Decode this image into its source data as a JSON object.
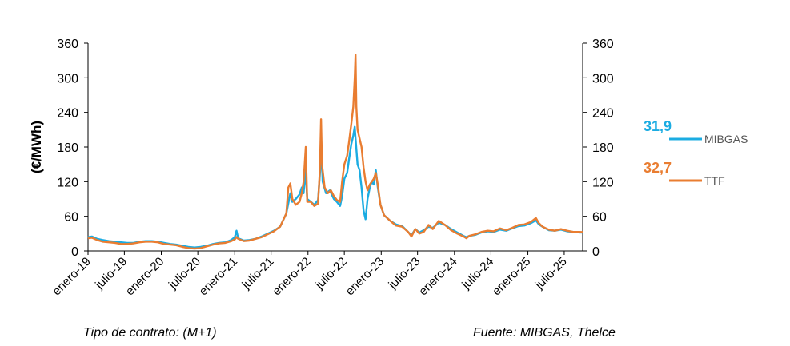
{
  "chart_data": {
    "type": "line",
    "ylabel": "(€/MWh)",
    "ylim": [
      0,
      360
    ],
    "yticks": [
      "0",
      "60",
      "120",
      "180",
      "240",
      "300",
      "360"
    ],
    "y2ticks": [
      "0",
      "60",
      "120",
      "180",
      "240",
      "300",
      "360"
    ],
    "xlim": [
      "2019-01",
      "2025-10"
    ],
    "xticks": [
      {
        "label": "enero-19",
        "date": "2019-01"
      },
      {
        "label": "julio-19",
        "date": "2019-07"
      },
      {
        "label": "enero-20",
        "date": "2020-01"
      },
      {
        "label": "julio-20",
        "date": "2020-07"
      },
      {
        "label": "enero-21",
        "date": "2021-01"
      },
      {
        "label": "julio-21",
        "date": "2021-07"
      },
      {
        "label": "enero-22",
        "date": "2022-01"
      },
      {
        "label": "julio-22",
        "date": "2022-07"
      },
      {
        "label": "enero-23",
        "date": "2023-01"
      },
      {
        "label": "julio-23",
        "date": "2023-07"
      },
      {
        "label": "enero-24",
        "date": "2024-01"
      },
      {
        "label": "julio-24",
        "date": "2024-07"
      },
      {
        "label": "enero-25",
        "date": "2025-01"
      },
      {
        "label": "julio-25",
        "date": "2025-07"
      }
    ],
    "grid": false,
    "legend": "right",
    "series": [
      {
        "name": "MIBGAS",
        "color": "#1BACE2",
        "last_label": "31,9",
        "points": [
          [
            "2019-01-01",
            24
          ],
          [
            "2019-01-20",
            25
          ],
          [
            "2019-02-15",
            21
          ],
          [
            "2019-03-15",
            19
          ],
          [
            "2019-04-15",
            17
          ],
          [
            "2019-05-15",
            16
          ],
          [
            "2019-06-15",
            15
          ],
          [
            "2019-07-15",
            14
          ],
          [
            "2019-08-15",
            14
          ],
          [
            "2019-09-15",
            16
          ],
          [
            "2019-10-15",
            17
          ],
          [
            "2019-11-15",
            17
          ],
          [
            "2019-12-15",
            16
          ],
          [
            "2020-01-15",
            14
          ],
          [
            "2020-02-15",
            12
          ],
          [
            "2020-03-15",
            11
          ],
          [
            "2020-04-15",
            9
          ],
          [
            "2020-05-15",
            7
          ],
          [
            "2020-06-15",
            6
          ],
          [
            "2020-07-15",
            7
          ],
          [
            "2020-08-15",
            9
          ],
          [
            "2020-09-15",
            12
          ],
          [
            "2020-10-15",
            14
          ],
          [
            "2020-11-15",
            15
          ],
          [
            "2020-12-15",
            19
          ],
          [
            "2021-01-01",
            24
          ],
          [
            "2021-01-10",
            35
          ],
          [
            "2021-01-18",
            22
          ],
          [
            "2021-02-15",
            18
          ],
          [
            "2021-03-15",
            19
          ],
          [
            "2021-04-15",
            21
          ],
          [
            "2021-05-15",
            25
          ],
          [
            "2021-06-15",
            30
          ],
          [
            "2021-07-15",
            35
          ],
          [
            "2021-08-15",
            42
          ],
          [
            "2021-09-15",
            65
          ],
          [
            "2021-10-05",
            100
          ],
          [
            "2021-10-15",
            85
          ],
          [
            "2021-11-01",
            90
          ],
          [
            "2021-11-20",
            98
          ],
          [
            "2021-12-01",
            110
          ],
          [
            "2021-12-10",
            100
          ],
          [
            "2021-12-20",
            140
          ],
          [
            "2021-12-28",
            90
          ],
          [
            "2022-01-15",
            85
          ],
          [
            "2022-02-01",
            80
          ],
          [
            "2022-02-20",
            88
          ],
          [
            "2022-03-05",
            150
          ],
          [
            "2022-03-08",
            190
          ],
          [
            "2022-03-15",
            120
          ],
          [
            "2022-04-01",
            100
          ],
          [
            "2022-04-20",
            105
          ],
          [
            "2022-05-10",
            90
          ],
          [
            "2022-05-25",
            85
          ],
          [
            "2022-06-10",
            78
          ],
          [
            "2022-06-20",
            95
          ],
          [
            "2022-07-01",
            125
          ],
          [
            "2022-07-15",
            135
          ],
          [
            "2022-07-25",
            160
          ],
          [
            "2022-08-05",
            185
          ],
          [
            "2022-08-15",
            200
          ],
          [
            "2022-08-22",
            215
          ],
          [
            "2022-08-26",
            195
          ],
          [
            "2022-09-05",
            150
          ],
          [
            "2022-09-15",
            140
          ],
          [
            "2022-09-25",
            110
          ],
          [
            "2022-10-05",
            70
          ],
          [
            "2022-10-15",
            55
          ],
          [
            "2022-10-25",
            90
          ],
          [
            "2022-11-05",
            110
          ],
          [
            "2022-11-15",
            120
          ],
          [
            "2022-11-25",
            115
          ],
          [
            "2022-12-05",
            140
          ],
          [
            "2022-12-15",
            110
          ],
          [
            "2022-12-28",
            80
          ],
          [
            "2023-01-15",
            62
          ],
          [
            "2023-02-15",
            52
          ],
          [
            "2023-03-15",
            46
          ],
          [
            "2023-04-15",
            43
          ],
          [
            "2023-05-15",
            33
          ],
          [
            "2023-06-01",
            27
          ],
          [
            "2023-06-20",
            38
          ],
          [
            "2023-07-10",
            32
          ],
          [
            "2023-08-01",
            36
          ],
          [
            "2023-08-25",
            42
          ],
          [
            "2023-09-15",
            40
          ],
          [
            "2023-10-15",
            49
          ],
          [
            "2023-11-15",
            45
          ],
          [
            "2023-12-15",
            38
          ],
          [
            "2024-01-15",
            32
          ],
          [
            "2024-02-15",
            26
          ],
          [
            "2024-03-01",
            24
          ],
          [
            "2024-03-15",
            26
          ],
          [
            "2024-04-15",
            28
          ],
          [
            "2024-05-15",
            32
          ],
          [
            "2024-06-15",
            34
          ],
          [
            "2024-07-15",
            33
          ],
          [
            "2024-08-15",
            37
          ],
          [
            "2024-09-15",
            35
          ],
          [
            "2024-10-15",
            39
          ],
          [
            "2024-11-15",
            43
          ],
          [
            "2024-12-15",
            44
          ],
          [
            "2025-01-15",
            48
          ],
          [
            "2025-02-10",
            53
          ],
          [
            "2025-02-25",
            46
          ],
          [
            "2025-03-15",
            42
          ],
          [
            "2025-04-15",
            36
          ],
          [
            "2025-05-15",
            35
          ],
          [
            "2025-06-15",
            37
          ],
          [
            "2025-07-15",
            34
          ],
          [
            "2025-08-15",
            33
          ],
          [
            "2025-09-15",
            32
          ],
          [
            "2025-10-01",
            31.9
          ]
        ]
      },
      {
        "name": "TTF",
        "color": "#E97D31",
        "last_label": "32,7",
        "points": [
          [
            "2019-01-01",
            22
          ],
          [
            "2019-01-20",
            23
          ],
          [
            "2019-02-15",
            19
          ],
          [
            "2019-03-15",
            16
          ],
          [
            "2019-04-15",
            15
          ],
          [
            "2019-05-15",
            14
          ],
          [
            "2019-06-15",
            12
          ],
          [
            "2019-07-15",
            12
          ],
          [
            "2019-08-15",
            13
          ],
          [
            "2019-09-15",
            15
          ],
          [
            "2019-10-15",
            16
          ],
          [
            "2019-11-15",
            16
          ],
          [
            "2019-12-15",
            15
          ],
          [
            "2020-01-15",
            12
          ],
          [
            "2020-02-15",
            11
          ],
          [
            "2020-03-15",
            10
          ],
          [
            "2020-04-15",
            7
          ],
          [
            "2020-05-15",
            5
          ],
          [
            "2020-06-15",
            4
          ],
          [
            "2020-07-15",
            5
          ],
          [
            "2020-08-15",
            8
          ],
          [
            "2020-09-15",
            11
          ],
          [
            "2020-10-15",
            13
          ],
          [
            "2020-11-15",
            14
          ],
          [
            "2020-12-15",
            17
          ],
          [
            "2021-01-01",
            20
          ],
          [
            "2021-01-10",
            24
          ],
          [
            "2021-01-18",
            21
          ],
          [
            "2021-02-15",
            17
          ],
          [
            "2021-03-15",
            18
          ],
          [
            "2021-04-15",
            21
          ],
          [
            "2021-05-15",
            24
          ],
          [
            "2021-06-15",
            29
          ],
          [
            "2021-07-15",
            34
          ],
          [
            "2021-08-15",
            42
          ],
          [
            "2021-09-15",
            65
          ],
          [
            "2021-09-25",
            110
          ],
          [
            "2021-10-05",
            117
          ],
          [
            "2021-10-15",
            90
          ],
          [
            "2021-11-01",
            80
          ],
          [
            "2021-11-20",
            85
          ],
          [
            "2021-12-01",
            100
          ],
          [
            "2021-12-10",
            120
          ],
          [
            "2021-12-21",
            180
          ],
          [
            "2021-12-28",
            85
          ],
          [
            "2022-01-15",
            85
          ],
          [
            "2022-02-01",
            78
          ],
          [
            "2022-02-20",
            82
          ],
          [
            "2022-03-01",
            140
          ],
          [
            "2022-03-07",
            228
          ],
          [
            "2022-03-12",
            150
          ],
          [
            "2022-03-25",
            110
          ],
          [
            "2022-04-10",
            100
          ],
          [
            "2022-04-25",
            105
          ],
          [
            "2022-05-10",
            95
          ],
          [
            "2022-05-25",
            88
          ],
          [
            "2022-06-10",
            85
          ],
          [
            "2022-06-20",
            120
          ],
          [
            "2022-07-01",
            150
          ],
          [
            "2022-07-15",
            165
          ],
          [
            "2022-07-25",
            190
          ],
          [
            "2022-08-05",
            220
          ],
          [
            "2022-08-15",
            250
          ],
          [
            "2022-08-22",
            300
          ],
          [
            "2022-08-26",
            340
          ],
          [
            "2022-08-30",
            250
          ],
          [
            "2022-09-05",
            210
          ],
          [
            "2022-09-15",
            195
          ],
          [
            "2022-09-25",
            180
          ],
          [
            "2022-10-05",
            145
          ],
          [
            "2022-10-15",
            120
          ],
          [
            "2022-10-25",
            105
          ],
          [
            "2022-11-05",
            115
          ],
          [
            "2022-11-15",
            120
          ],
          [
            "2022-11-25",
            125
          ],
          [
            "2022-12-05",
            135
          ],
          [
            "2022-12-15",
            115
          ],
          [
            "2022-12-28",
            80
          ],
          [
            "2023-01-15",
            62
          ],
          [
            "2023-02-15",
            52
          ],
          [
            "2023-03-15",
            44
          ],
          [
            "2023-04-15",
            42
          ],
          [
            "2023-05-15",
            33
          ],
          [
            "2023-06-01",
            25
          ],
          [
            "2023-06-20",
            38
          ],
          [
            "2023-07-10",
            30
          ],
          [
            "2023-08-01",
            33
          ],
          [
            "2023-08-25",
            45
          ],
          [
            "2023-09-15",
            38
          ],
          [
            "2023-10-15",
            52
          ],
          [
            "2023-11-15",
            45
          ],
          [
            "2023-12-15",
            36
          ],
          [
            "2024-01-15",
            30
          ],
          [
            "2024-02-15",
            25
          ],
          [
            "2024-03-01",
            22
          ],
          [
            "2024-03-15",
            26
          ],
          [
            "2024-04-15",
            29
          ],
          [
            "2024-05-15",
            33
          ],
          [
            "2024-06-15",
            35
          ],
          [
            "2024-07-15",
            34
          ],
          [
            "2024-08-15",
            39
          ],
          [
            "2024-09-15",
            36
          ],
          [
            "2024-10-15",
            40
          ],
          [
            "2024-11-15",
            45
          ],
          [
            "2024-12-15",
            46
          ],
          [
            "2025-01-15",
            50
          ],
          [
            "2025-02-10",
            57
          ],
          [
            "2025-02-25",
            48
          ],
          [
            "2025-03-15",
            42
          ],
          [
            "2025-04-15",
            37
          ],
          [
            "2025-05-15",
            35
          ],
          [
            "2025-06-15",
            38
          ],
          [
            "2025-07-15",
            35
          ],
          [
            "2025-08-15",
            33
          ],
          [
            "2025-09-15",
            33
          ],
          [
            "2025-10-01",
            32.7
          ]
        ]
      }
    ]
  },
  "footer": {
    "left": "Tipo de contrato: (M+1)",
    "right": "Fuente: MIBGAS, Thelce"
  }
}
